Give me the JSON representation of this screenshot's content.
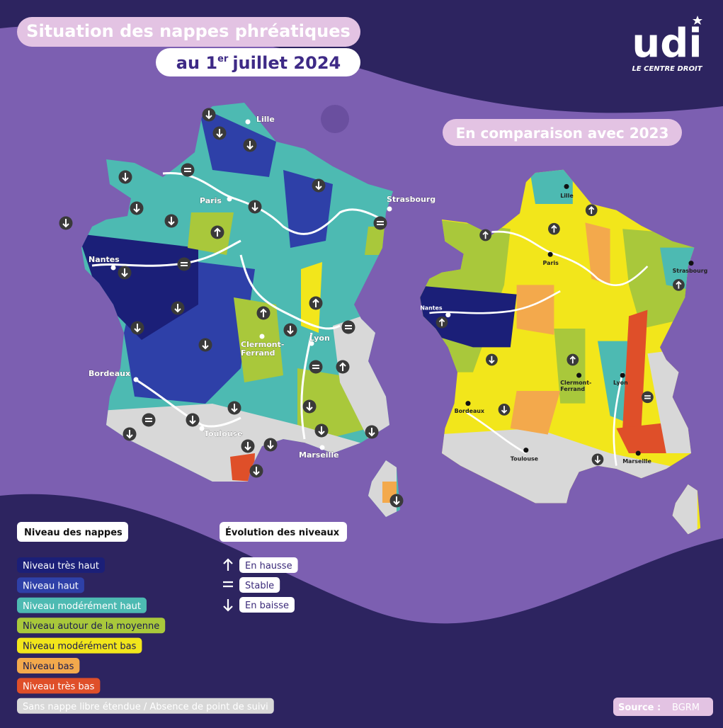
{
  "header": {
    "title_line1": "Situation des nappes phréatiques",
    "title_line2_prefix": "au 1",
    "title_line2_sup": "er",
    "title_line2_suffix": "juillet 2024"
  },
  "logo": {
    "name": "udi",
    "tagline": "LE CENTRE DROIT"
  },
  "comparison_title": "En comparaison avec 2023",
  "map_2024": {
    "cities": [
      "Lille",
      "Paris",
      "Strasbourg",
      "Nantes",
      "Clermont-\nFerrand",
      "Lyon",
      "Bordeaux",
      "Toulouse",
      "Marseille"
    ]
  },
  "map_2023": {
    "cities": [
      "Lille",
      "Paris",
      "Strasbourg",
      "Nantes",
      "Clermont-\nFerrand",
      "Lyon",
      "Bordeaux",
      "Toulouse",
      "Marseille"
    ]
  },
  "legend_levels": {
    "title": "Niveau des nappes",
    "items": [
      {
        "label": "Niveau très haut",
        "color": "#1b1f78"
      },
      {
        "label": "Niveau haut",
        "color": "#2e40a8"
      },
      {
        "label": "Niveau modérément haut",
        "color": "#4dbab2"
      },
      {
        "label": "Niveau autour de la moyenne",
        "color": "#a9c83b"
      },
      {
        "label": "Niveau modérément bas",
        "color": "#f2e61b"
      },
      {
        "label": "Niveau bas",
        "color": "#f3a94c"
      },
      {
        "label": "Niveau très bas",
        "color": "#df4f29"
      },
      {
        "label": "Sans nappe libre étendue / Absence de point  de suivi",
        "color": "#d8d8d8"
      }
    ]
  },
  "legend_evolution": {
    "title": "Évolution des niveaux",
    "items": [
      "En hausse",
      "Stable",
      "En baisse"
    ]
  },
  "source": {
    "label": "Source :",
    "value": "BGRM"
  }
}
